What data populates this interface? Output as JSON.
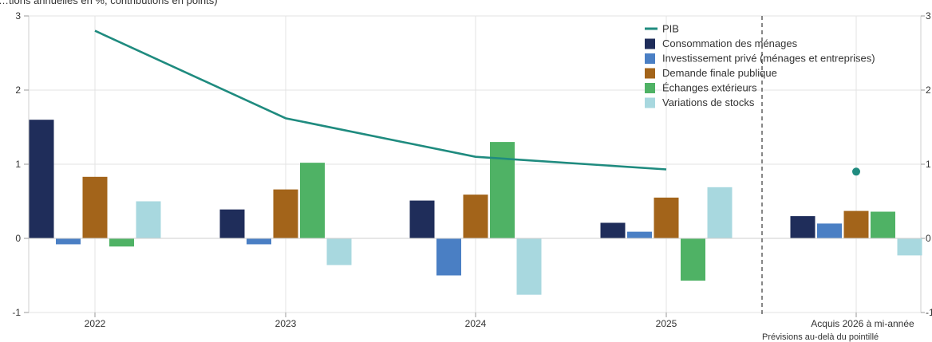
{
  "header": {
    "subtitle": "…tions annuelles en %, contributions en points)"
  },
  "chart_data": {
    "type": "bar",
    "categories": [
      "2022",
      "2023",
      "2024",
      "2025",
      "Acquis 2026 à mi-année"
    ],
    "ylim": [
      -1,
      3
    ],
    "yticks": [
      3,
      2,
      1,
      0,
      -1
    ],
    "grid": true,
    "legend_position": "top-right",
    "series": [
      {
        "name": "Consommation des ménages",
        "color": "#1f2d5a",
        "values": [
          1.6,
          0.39,
          0.51,
          0.21,
          0.3
        ]
      },
      {
        "name": "Investissement privé (ménages et entreprises)",
        "color": "#4a7fc4",
        "values": [
          -0.08,
          -0.08,
          -0.5,
          0.09,
          0.2
        ]
      },
      {
        "name": "Demande finale publique",
        "color": "#a3641a",
        "values": [
          0.83,
          0.66,
          0.59,
          0.55,
          0.37
        ]
      },
      {
        "name": "Échanges extérieurs",
        "color": "#4fb265",
        "values": [
          -0.11,
          1.02,
          1.3,
          -0.57,
          0.36
        ]
      },
      {
        "name": "Variations de stocks",
        "color": "#a8d8df",
        "values": [
          0.5,
          -0.36,
          -0.76,
          0.69,
          -0.23
        ]
      }
    ],
    "line": {
      "name": "PIB",
      "color": "#1f8b7f",
      "values": [
        2.8,
        1.62,
        1.1,
        0.93,
        0.9
      ],
      "marker_only_last": true
    },
    "forecast_note": "Prévisions au-delà du pointillé"
  }
}
